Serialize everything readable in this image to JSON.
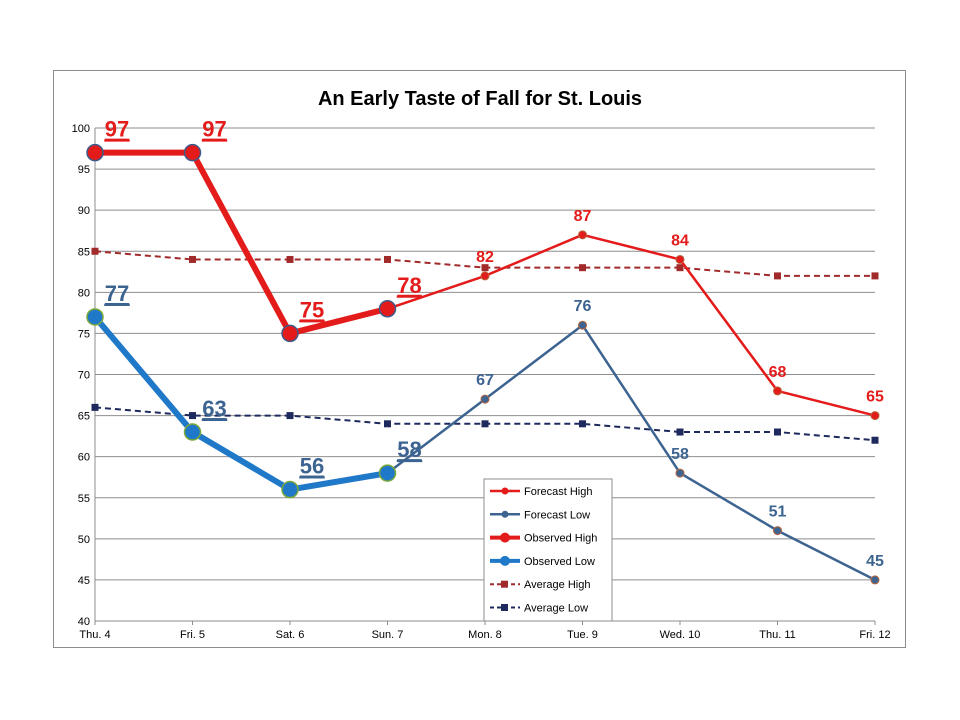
{
  "chart_data": {
    "type": "line",
    "title": "An Early Taste of Fall for St. Louis",
    "xlabel": "",
    "ylabel": "",
    "categories": [
      "Thu. 4",
      "Fri. 5",
      "Sat. 6",
      "Sun. 7",
      "Mon. 8",
      "Tue. 9",
      "Wed. 10",
      "Thu. 11",
      "Fri. 12"
    ],
    "ylim": [
      40,
      100
    ],
    "yticks": [
      40,
      45,
      50,
      55,
      60,
      65,
      70,
      75,
      80,
      85,
      90,
      95,
      100
    ],
    "grid": true,
    "legend_position": "bottom-center",
    "series": [
      {
        "name": "Forecast High",
        "color": "#e41b1b",
        "style": "solid-thin",
        "marker": "circle",
        "values": [
          null,
          null,
          null,
          78,
          82,
          87,
          84,
          68,
          65
        ],
        "labels": [
          null,
          null,
          null,
          null,
          "82",
          "87",
          "84",
          "68",
          "65"
        ]
      },
      {
        "name": "Forecast Low",
        "color": "#3d6491",
        "style": "solid-thin",
        "marker": "circle",
        "values": [
          null,
          null,
          null,
          58,
          67,
          76,
          58,
          51,
          45
        ],
        "labels": [
          null,
          null,
          null,
          null,
          "67",
          "76",
          "58",
          "51",
          "45"
        ]
      },
      {
        "name": "Observed High",
        "color": "#e41b1b",
        "style": "solid-thick",
        "marker": "big-circle",
        "values": [
          97,
          97,
          75,
          78,
          null,
          null,
          null,
          null,
          null
        ],
        "labels": [
          "97",
          "97",
          "75",
          "78",
          null,
          null,
          null,
          null,
          null
        ]
      },
      {
        "name": "Observed Low",
        "color": "#1f78c8",
        "style": "solid-thick",
        "marker": "big-circle",
        "values": [
          77,
          63,
          56,
          58,
          null,
          null,
          null,
          null,
          null
        ],
        "labels": [
          "77",
          "63",
          "56",
          "58",
          null,
          null,
          null,
          null,
          null
        ]
      },
      {
        "name": "Average High",
        "color": "#a12b2b",
        "style": "dashed",
        "marker": "square",
        "values": [
          85,
          84,
          84,
          84,
          83,
          83,
          83,
          82,
          82
        ],
        "labels": [
          null,
          null,
          null,
          null,
          null,
          null,
          null,
          null,
          null
        ]
      },
      {
        "name": "Average Low",
        "color": "#1e2a5e",
        "style": "dashed",
        "marker": "square",
        "values": [
          66,
          65,
          65,
          64,
          64,
          64,
          63,
          63,
          62
        ],
        "labels": [
          null,
          null,
          null,
          null,
          null,
          null,
          null,
          null,
          null
        ]
      }
    ]
  }
}
